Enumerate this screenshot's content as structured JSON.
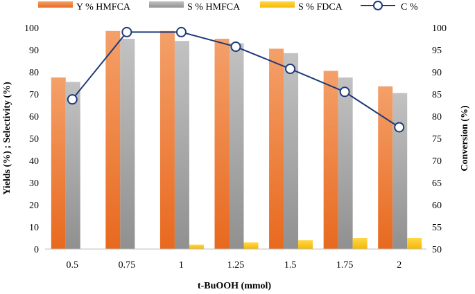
{
  "chart_data": {
    "type": "bar",
    "title": "",
    "xlabel": "t-BuOOH (mmol)",
    "ylabel": "Yields (%) ; Selectivity (%)",
    "y2label": "Conversion (%)",
    "categories": [
      "0.5",
      "0.75",
      "1",
      "1.25",
      "1.5",
      "1.75",
      "2"
    ],
    "ylim": [
      0,
      100
    ],
    "yticks": [
      0,
      10,
      20,
      30,
      40,
      50,
      60,
      70,
      80,
      90,
      100
    ],
    "y2lim": [
      50,
      100
    ],
    "y2ticks": [
      50,
      55,
      60,
      65,
      70,
      75,
      80,
      85,
      90,
      95,
      100
    ],
    "grid": false,
    "legend_position": "top",
    "series": [
      {
        "name": "Y % HMFCA",
        "kind": "bar",
        "axis": "left",
        "color": "#ED7D31",
        "values": [
          77.5,
          98.5,
          98.5,
          95,
          90.5,
          80.5,
          73.5
        ]
      },
      {
        "name": "S % HMFCA",
        "kind": "bar",
        "axis": "left",
        "color": "#A5A5A5",
        "values": [
          75.5,
          95,
          94,
          93,
          88.5,
          77.5,
          70.5
        ]
      },
      {
        "name": "S % FDCA",
        "kind": "bar",
        "axis": "left",
        "color": "#FFC000",
        "values": [
          0,
          0,
          2,
          3,
          4,
          5,
          5
        ]
      },
      {
        "name": "C %",
        "kind": "line",
        "axis": "right",
        "color": "#1F3A78",
        "values": [
          83.8,
          99,
          99,
          95.7,
          90.7,
          85.5,
          77.5
        ]
      }
    ]
  }
}
